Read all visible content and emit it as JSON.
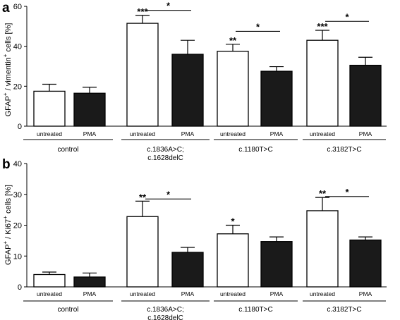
{
  "chart_data": [
    {
      "type": "bar",
      "panel_label": "a",
      "ylabel_main": "GFAP",
      "ylabel_sup1": "+",
      "ylabel_mid": " / vimentin",
      "ylabel_sup2": "+",
      "ylabel_end": " cells [%]",
      "ylim": [
        0,
        60
      ],
      "yticks": [
        "0",
        "20",
        "40",
        "60"
      ],
      "categories": [
        "untreated",
        "PMA",
        "untreated",
        "PMA",
        "untreated",
        "PMA",
        "untreated",
        "PMA"
      ],
      "values": [
        17.5,
        16.5,
        51.5,
        36,
        37.5,
        27.5,
        43,
        30.5
      ],
      "errors": [
        3.5,
        3,
        4,
        7,
        3.5,
        2.3,
        5,
        4
      ],
      "fills": [
        "white",
        "black",
        "white",
        "black",
        "white",
        "black",
        "white",
        "black"
      ],
      "groups": [
        {
          "name": "control",
          "name2": ""
        },
        {
          "name": "c.1836A>C;",
          "name2": "c.1628delC"
        },
        {
          "name": "c.1180T>C",
          "name2": ""
        },
        {
          "name": "c.3182T>C",
          "name2": ""
        }
      ],
      "stars": [
        {
          "bar": 2,
          "text": "***"
        },
        {
          "bar": 4,
          "text": "**"
        },
        {
          "bar": 6,
          "text": "***"
        }
      ],
      "brackets": [
        {
          "from": 2,
          "to": 3,
          "y": 58,
          "text": "*"
        },
        {
          "from": 4,
          "to": 5,
          "y": 47.5,
          "text": "*"
        },
        {
          "from": 6,
          "to": 7,
          "y": 52.5,
          "text": "*"
        }
      ]
    },
    {
      "type": "bar",
      "panel_label": "b",
      "ylabel_main": "GFAP",
      "ylabel_sup1": "+",
      "ylabel_mid": " / Ki67",
      "ylabel_sup2": "+",
      "ylabel_end": " cells [%]",
      "ylim": [
        0,
        40
      ],
      "yticks": [
        "0",
        "10",
        "20",
        "30",
        "40"
      ],
      "categories": [
        "untreated",
        "PMA",
        "untreated",
        "PMA",
        "untreated",
        "PMA",
        "untreated",
        "PMA"
      ],
      "values": [
        4,
        3.2,
        22.8,
        11.2,
        17.2,
        14.7,
        24.7,
        15.2
      ],
      "errors": [
        0.8,
        1.3,
        5,
        1.6,
        2.8,
        1.5,
        4.3,
        1
      ],
      "fills": [
        "white",
        "black",
        "white",
        "black",
        "white",
        "black",
        "white",
        "black"
      ],
      "groups": [
        {
          "name": "control",
          "name2": ""
        },
        {
          "name": "c.1836A>C;",
          "name2": "c.1628delC"
        },
        {
          "name": "c.1180T>C",
          "name2": ""
        },
        {
          "name": "c.3182T>C",
          "name2": ""
        }
      ],
      "stars": [
        {
          "bar": 2,
          "text": "**"
        },
        {
          "bar": 4,
          "text": "*"
        },
        {
          "bar": 6,
          "text": "**"
        }
      ],
      "brackets": [
        {
          "from": 2,
          "to": 3,
          "y": 28.5,
          "text": "*"
        },
        {
          "from": 6,
          "to": 7,
          "y": 29.3,
          "text": "*"
        }
      ]
    }
  ]
}
